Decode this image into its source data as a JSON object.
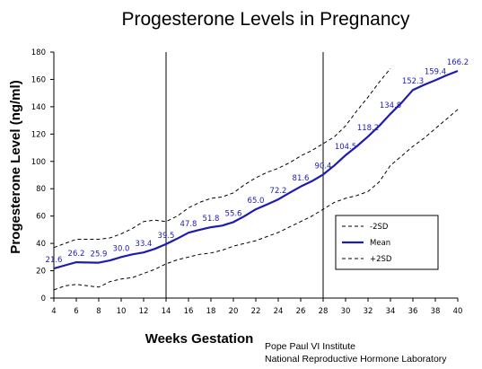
{
  "chart_data": {
    "type": "line",
    "title": "Progesterone Levels in Pregnancy",
    "xlabel": "Weeks Gestation",
    "ylabel": "Progesterone Level (ng/ml)",
    "xlim": [
      4,
      40
    ],
    "ylim": [
      0,
      180
    ],
    "x_ticks": [
      4,
      6,
      8,
      10,
      12,
      14,
      16,
      18,
      20,
      22,
      24,
      26,
      28,
      30,
      32,
      34,
      36,
      38,
      40
    ],
    "y_ticks": [
      0,
      20,
      40,
      60,
      80,
      100,
      120,
      140,
      160,
      180
    ],
    "vertical_markers": [
      14,
      28
    ],
    "legend_position": "right",
    "series": [
      {
        "name": "-2SD",
        "style": "dashed",
        "color": "#000000",
        "x": [
          4,
          5,
          6,
          7,
          8,
          9,
          10,
          11,
          12,
          13,
          14,
          15,
          16,
          17,
          18,
          19,
          20,
          21,
          22,
          23,
          24,
          25,
          26,
          27,
          28,
          29,
          30,
          31,
          32,
          33,
          34
        ],
        "y": [
          37,
          40,
          43,
          43,
          43,
          44,
          47,
          51,
          56,
          57,
          56,
          60,
          66,
          70,
          73,
          74,
          77,
          83,
          88,
          92,
          95,
          99,
          104,
          108,
          113,
          118,
          126,
          137,
          147,
          158,
          168
        ]
      },
      {
        "name": "Mean",
        "style": "solid",
        "color": "#1c1cb0",
        "x": [
          4,
          5,
          6,
          7,
          8,
          9,
          10,
          11,
          12,
          13,
          14,
          15,
          16,
          17,
          18,
          19,
          20,
          21,
          22,
          23,
          24,
          25,
          26,
          27,
          28,
          29,
          30,
          31,
          32,
          33,
          34,
          35,
          36,
          37,
          38,
          39,
          40
        ],
        "y": [
          21.6,
          24,
          26.2,
          26,
          25.9,
          27.5,
          30.0,
          32,
          33.4,
          36,
          39.5,
          43.5,
          47.8,
          50,
          51.8,
          53,
          55.6,
          60,
          65.0,
          68.5,
          72.2,
          77,
          81.6,
          85.5,
          90.4,
          97,
          104.5,
          111,
          118.2,
          126,
          134.8,
          143,
          152.3,
          156,
          159.4,
          163,
          166.2
        ]
      },
      {
        "name": "+2SD",
        "style": "dashed",
        "color": "#000000",
        "x": [
          4,
          5,
          6,
          7,
          8,
          9,
          10,
          11,
          12,
          13,
          14,
          15,
          16,
          17,
          18,
          19,
          20,
          21,
          22,
          23,
          24,
          25,
          26,
          27,
          28,
          29,
          30,
          31,
          32,
          33,
          34,
          35,
          36,
          37,
          38,
          39,
          40
        ],
        "y": [
          6,
          9,
          10,
          9,
          8,
          12,
          14,
          15,
          18,
          21,
          25,
          28,
          30,
          32,
          33,
          35,
          38,
          40,
          42,
          45,
          48,
          52,
          56,
          60,
          65,
          70,
          73,
          75,
          78,
          85,
          97,
          104,
          111,
          117,
          124,
          131,
          138
        ]
      }
    ],
    "data_labels": [
      {
        "x": 4,
        "value": "21.6"
      },
      {
        "x": 6,
        "value": "26.2"
      },
      {
        "x": 8,
        "value": "25.9"
      },
      {
        "x": 10,
        "value": "30.0"
      },
      {
        "x": 12,
        "value": "33.4"
      },
      {
        "x": 14,
        "value": "39.5"
      },
      {
        "x": 16,
        "value": "47.8"
      },
      {
        "x": 18,
        "value": "51.8"
      },
      {
        "x": 20,
        "value": "55.6"
      },
      {
        "x": 22,
        "value": "65.0"
      },
      {
        "x": 24,
        "value": "72.2"
      },
      {
        "x": 26,
        "value": "81.6"
      },
      {
        "x": 28,
        "value": "90.4"
      },
      {
        "x": 30,
        "value": "104.5"
      },
      {
        "x": 32,
        "value": "118.2"
      },
      {
        "x": 34,
        "value": "134.8"
      },
      {
        "x": 36,
        "value": "152.3"
      },
      {
        "x": 38,
        "value": "159.4"
      },
      {
        "x": 40,
        "value": "166.2"
      }
    ],
    "legend": [
      {
        "label": "-2SD",
        "style": "dashed"
      },
      {
        "label": "Mean",
        "style": "solid"
      },
      {
        "label": "+2SD",
        "style": "dashed"
      }
    ]
  },
  "credit": {
    "line1": "Pope Paul VI Institute",
    "line2": "National Reproductive Hormone Laboratory"
  },
  "colors": {
    "mean": "#1c1cb0",
    "sd": "#000000",
    "axis": "#000000",
    "background": "#ffffff"
  }
}
